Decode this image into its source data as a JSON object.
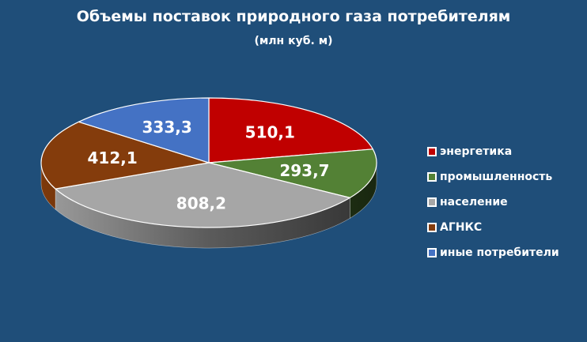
{
  "chart_data": {
    "type": "pie",
    "title": "Объемы поставок природного газа потребителям",
    "subtitle": "(млн куб. м)",
    "labels": [
      "энергетика",
      "промышленность",
      "население",
      "АГНКС",
      "иные потребители"
    ],
    "values": [
      510.1,
      293.7,
      808.2,
      412.1,
      333.3
    ],
    "value_labels": [
      "510,1",
      "293,7",
      "808,2",
      "412,1",
      "333,3"
    ],
    "colors": [
      "#c00000",
      "#538135",
      "#a6a6a6",
      "#843c0c",
      "#4472c4"
    ],
    "legend_position": "right"
  }
}
